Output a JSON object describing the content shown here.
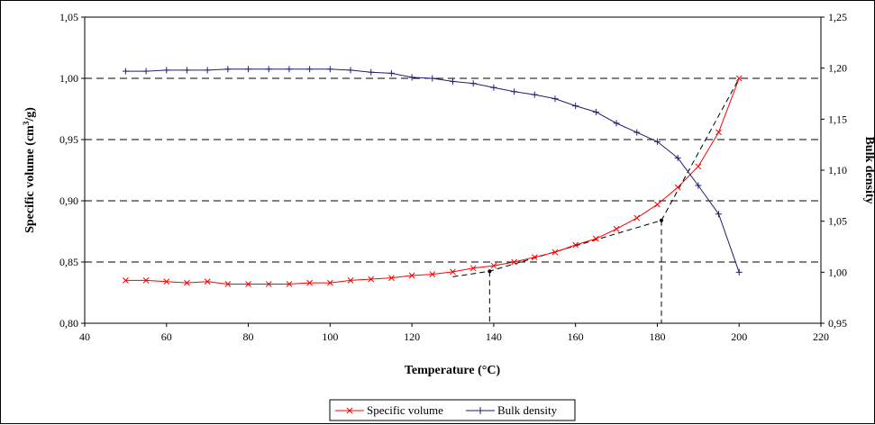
{
  "chart_data": {
    "type": "line",
    "xlabel": "Temperature (°C)",
    "ylabel_left": {
      "main": "Specific volume (cm",
      "sup": "3",
      "tail": "/g)"
    },
    "ylabel_right": "Bulk density",
    "xlim": [
      40,
      220
    ],
    "xticks": [
      "40",
      "60",
      "80",
      "100",
      "120",
      "140",
      "160",
      "180",
      "200",
      "220"
    ],
    "ylim_left": [
      0.8,
      1.05
    ],
    "yticks_left": [
      "0,80",
      "0,85",
      "0,90",
      "0,95",
      "1,00",
      "1,05"
    ],
    "ylim_right": [
      0.95,
      1.25
    ],
    "yticks_right": [
      "0,95",
      "1,00",
      "1,05",
      "1,10",
      "1,15",
      "1,20",
      "1,25"
    ],
    "gridlines": [
      0.85,
      0.9,
      0.95,
      1.0
    ],
    "legend_position": "bottom",
    "series": [
      {
        "name": "Specific volume",
        "axis": "left",
        "color": "#FF0000",
        "marker": "x",
        "x": [
          50,
          55,
          60,
          65,
          70,
          75,
          80,
          85,
          90,
          95,
          100,
          105,
          110,
          115,
          120,
          125,
          130,
          135,
          140,
          145,
          150,
          155,
          160,
          165,
          170,
          175,
          180,
          185,
          190,
          195,
          200
        ],
        "y": [
          0.835,
          0.835,
          0.834,
          0.833,
          0.834,
          0.832,
          0.832,
          0.832,
          0.832,
          0.833,
          0.833,
          0.835,
          0.836,
          0.837,
          0.839,
          0.84,
          0.842,
          0.845,
          0.847,
          0.85,
          0.854,
          0.858,
          0.864,
          0.869,
          0.877,
          0.886,
          0.897,
          0.911,
          0.928,
          0.956,
          1.0
        ]
      },
      {
        "name": "Bulk density",
        "axis": "right",
        "color": "#1F1F6E",
        "marker": "+",
        "x": [
          50,
          55,
          60,
          65,
          70,
          75,
          80,
          85,
          90,
          95,
          100,
          105,
          110,
          115,
          120,
          125,
          130,
          135,
          140,
          145,
          150,
          155,
          160,
          165,
          170,
          175,
          180,
          185,
          190,
          195,
          200
        ],
        "y": [
          1.197,
          1.197,
          1.198,
          1.198,
          1.198,
          1.199,
          1.199,
          1.199,
          1.199,
          1.199,
          1.199,
          1.198,
          1.196,
          1.195,
          1.191,
          1.19,
          1.187,
          1.185,
          1.181,
          1.177,
          1.174,
          1.17,
          1.163,
          1.157,
          1.146,
          1.137,
          1.128,
          1.112,
          1.085,
          1.057,
          1.0
        ]
      }
    ],
    "tangent_lines": [
      {
        "points": [
          [
            130,
            0.838
          ],
          [
            139,
            0.8425
          ],
          [
            181,
            0.884
          ],
          [
            200,
            1.0
          ]
        ]
      }
    ],
    "intersection_markers": [
      {
        "x": 139,
        "y": 0.8425
      },
      {
        "x": 181,
        "y": 0.884
      }
    ]
  }
}
